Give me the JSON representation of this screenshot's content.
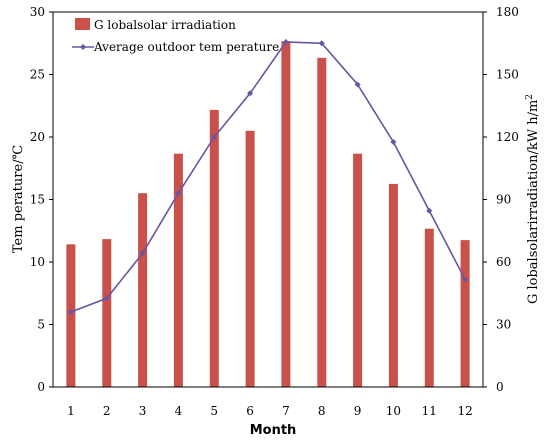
{
  "chart_data": {
    "type": "bar",
    "categories": [
      "1",
      "2",
      "3",
      "4",
      "5",
      "6",
      "7",
      "8",
      "9",
      "10",
      "11",
      "12"
    ],
    "series": [
      {
        "name": "G lobalsolar irradiation",
        "kind": "bar",
        "axis": "right",
        "color": "#c9514a",
        "values": [
          68.5,
          71,
          93,
          112,
          133,
          123,
          166,
          158,
          112,
          97.5,
          76,
          70.5
        ]
      },
      {
        "name": "Average outdoor tem perature",
        "kind": "line",
        "axis": "left",
        "color": "#6a55a0",
        "values": [
          6.0,
          7.1,
          10.7,
          15.5,
          20.0,
          23.5,
          27.6,
          27.5,
          24.2,
          19.6,
          14.1,
          8.6
        ]
      }
    ],
    "xlabel": "Month",
    "ylabel_left": "Tem perature/℃",
    "ylabel_right": "G lobalsolarirradiation/kW h/m",
    "ylabel_right_superscript": "2",
    "ylim_left": [
      0,
      30
    ],
    "ylim_right": [
      0,
      180
    ],
    "yticks_left": [
      "0",
      "5",
      "10",
      "15",
      "20",
      "25",
      "30"
    ],
    "yticks_right": [
      "0",
      "30",
      "60",
      "90",
      "120",
      "150",
      "180"
    ],
    "grid": false,
    "legend_position": "top-left"
  }
}
